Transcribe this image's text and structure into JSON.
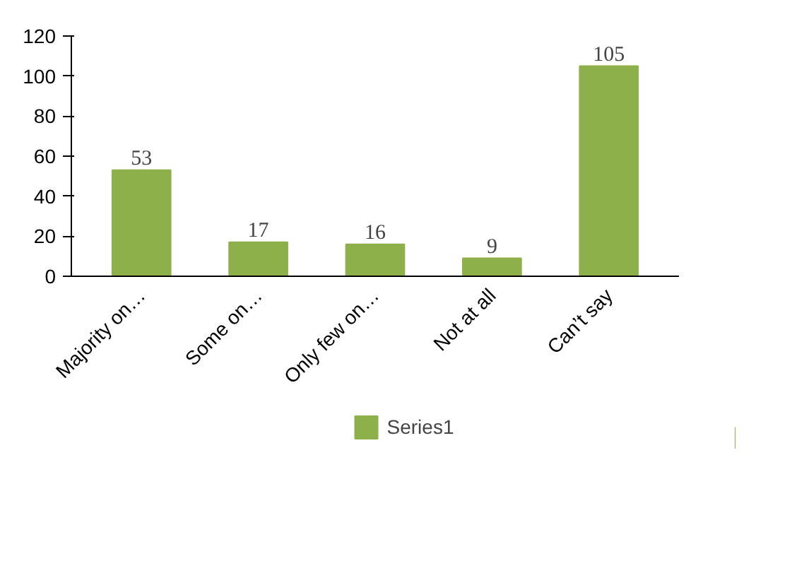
{
  "chart_data": {
    "type": "bar",
    "categories": [
      "Majority on…",
      "Some on…",
      "Only few on…",
      "Not at all",
      "Can’t say"
    ],
    "series": [
      {
        "name": "Series1",
        "color": "#8db04a",
        "values": [
          53,
          17,
          16,
          9,
          105
        ]
      }
    ],
    "ylim": [
      0,
      120
    ],
    "yticks": [
      0,
      20,
      40,
      60,
      80,
      100,
      120
    ],
    "data_labels": true,
    "grid": false,
    "legend": "bottom"
  }
}
